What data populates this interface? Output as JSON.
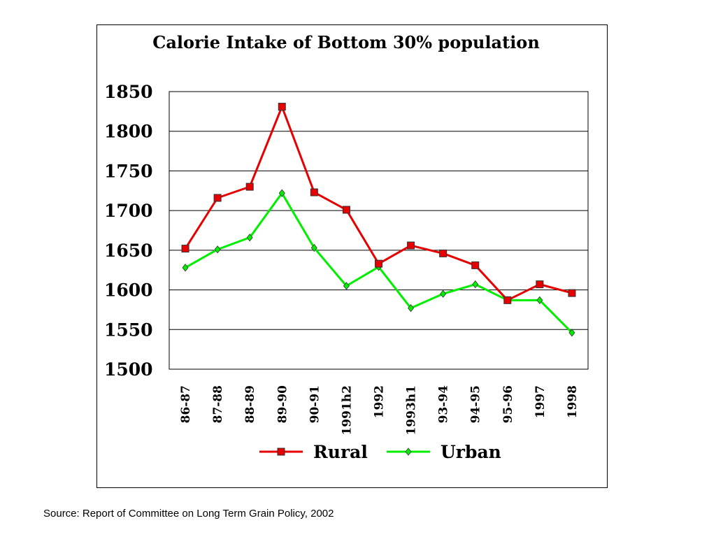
{
  "chart_data": {
    "type": "line",
    "title": "Calorie Intake of Bottom 30% population",
    "xlabel": "",
    "ylabel": "",
    "categories": [
      "86-87",
      "87-88",
      "88-89",
      "89-90",
      "90-91",
      "1991h2",
      "1992",
      "1993h1",
      "93-94",
      "94-95",
      "95-96",
      "1997",
      "1998"
    ],
    "ylim": [
      1500,
      1850
    ],
    "yticks": [
      "1850",
      "1800",
      "1750",
      "1700",
      "1650",
      "1600",
      "1550",
      "1500"
    ],
    "grid": true,
    "legend_position": "bottom",
    "series": [
      {
        "name": "Rural",
        "color": "#e60000",
        "marker": "square",
        "values": [
          1652,
          1716,
          1730,
          1831,
          1723,
          1701,
          1633,
          1656,
          1646,
          1631,
          1587,
          1607,
          1596
        ]
      },
      {
        "name": "Urban",
        "color": "#00ee00",
        "marker": "diamond",
        "values": [
          1628,
          1651,
          1666,
          1722,
          1653,
          1605,
          1629,
          1577,
          1595,
          1607,
          1587,
          1587,
          1546
        ]
      }
    ]
  },
  "source_note": "Source: Report of Committee on Long Term Grain Policy, 2002"
}
